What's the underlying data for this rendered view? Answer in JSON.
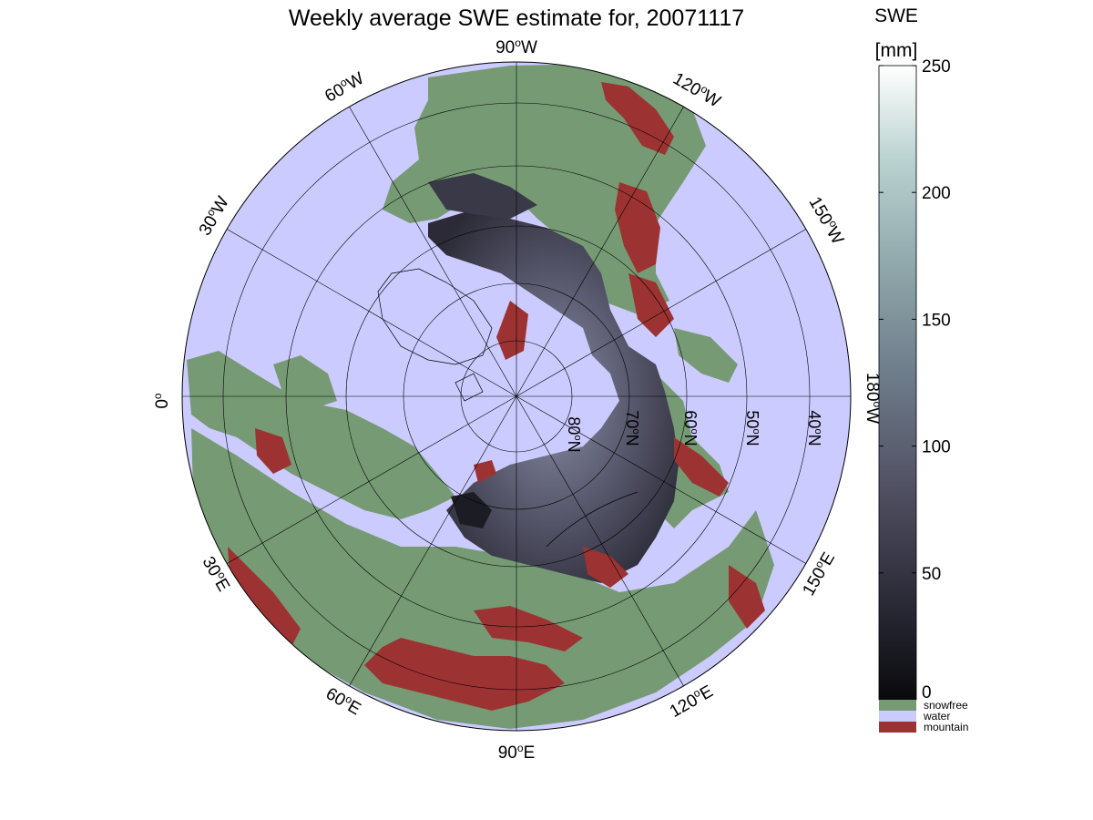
{
  "title": "Weekly average SWE estimate for, 20071117",
  "colorbar": {
    "title": "SWE",
    "unit": "[mm]",
    "ticks": [
      "0",
      "50",
      "100",
      "150",
      "200",
      "250"
    ],
    "range": [
      0,
      250
    ],
    "gradient": [
      "#0a0a0d",
      "#2c2b38",
      "#545467",
      "#6f7e8c",
      "#8fa6aa",
      "#b9d2d0",
      "#ffffff"
    ],
    "categories": [
      {
        "label": "snowfree",
        "color": "#769b74"
      },
      {
        "label": "water",
        "color": "#cbcbff"
      },
      {
        "label": "mountain",
        "color": "#9c3332"
      }
    ]
  },
  "map": {
    "projection": "north polar stereographic",
    "ocean_color": "#cbcbff",
    "land_color": "#769b74",
    "snow_color": "#4f4e60",
    "mountain_color": "#9c3332",
    "meridian_labels": [
      {
        "id": "lon-90w",
        "deg": "90",
        "hemi": "W"
      },
      {
        "id": "lon-60w",
        "deg": "60",
        "hemi": "W"
      },
      {
        "id": "lon-30w",
        "deg": "30",
        "hemi": "W"
      },
      {
        "id": "lon-0",
        "deg": "0",
        "hemi": ""
      },
      {
        "id": "lon-120w",
        "deg": "120",
        "hemi": "W"
      },
      {
        "id": "lon-150w",
        "deg": "150",
        "hemi": "W"
      },
      {
        "id": "lon-180w",
        "deg": "180",
        "hemi": "W"
      },
      {
        "id": "lon-30e",
        "deg": "30",
        "hemi": "E"
      },
      {
        "id": "lon-60e",
        "deg": "60",
        "hemi": "E"
      },
      {
        "id": "lon-90e",
        "deg": "90",
        "hemi": "E"
      },
      {
        "id": "lon-120e",
        "deg": "120",
        "hemi": "E"
      },
      {
        "id": "lon-150e",
        "deg": "150",
        "hemi": "E"
      }
    ],
    "parallel_labels": [
      {
        "id": "lat-80n",
        "deg": "80",
        "hemi": "N"
      },
      {
        "id": "lat-70n",
        "deg": "70",
        "hemi": "N"
      },
      {
        "id": "lat-60n",
        "deg": "60",
        "hemi": "N"
      },
      {
        "id": "lat-50n",
        "deg": "50",
        "hemi": "N"
      },
      {
        "id": "lat-40n",
        "deg": "40",
        "hemi": "N"
      }
    ]
  }
}
